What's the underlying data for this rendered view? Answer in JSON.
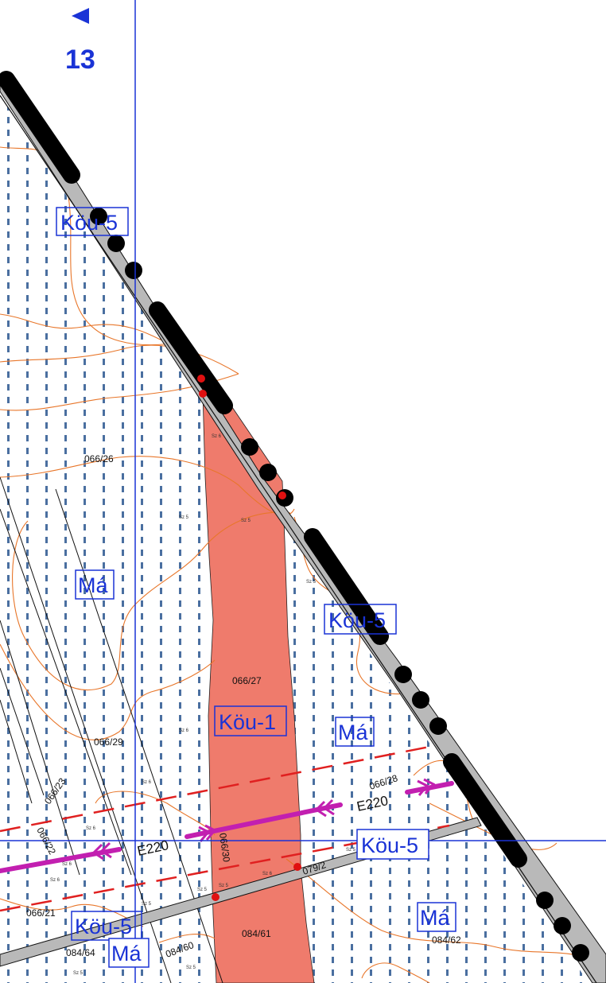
{
  "map": {
    "sheet_number": "13",
    "zones": {
      "kou5": "Köu-5",
      "kou1": "Köu-1",
      "ma": "Má"
    },
    "parcels": {
      "p066_26": "066/26",
      "p066_27": "066/27",
      "p066_29": "066/29",
      "p066_23": "066/23",
      "p066_22": "066/22",
      "p066_21": "066/21",
      "p066_28": "066/28",
      "p066_30": "066/30",
      "p079_2": "079/2",
      "p084_64": "084/64",
      "p084_60": "084/60",
      "p084_61": "084/61",
      "p084_62": "084/62"
    },
    "powerline_label": "E220",
    "small_marks": {
      "sz5": "Sz 5",
      "sz6": "Sz 6"
    },
    "colors": {
      "zone_blue": "#1a33d6",
      "kou1_fill": "#ef7b6c",
      "powerline": "#c21fb0",
      "dashed_red": "#e02020",
      "contour": "#e8762a",
      "road_fill": "#b9b9b9",
      "dot_pattern": "#4a6fa0"
    }
  }
}
